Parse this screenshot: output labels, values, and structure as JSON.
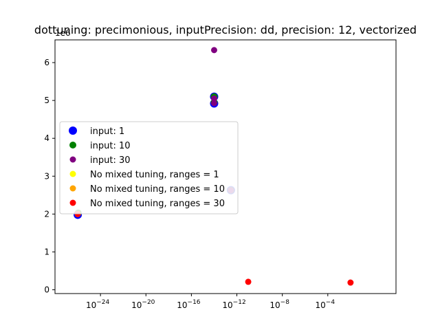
{
  "chart_data": {
    "type": "scatter",
    "title": "dottuning: precimonious, inputPrecision: dd, precision: 12, vectorized",
    "xlabel": "",
    "ylabel": "",
    "xscale": "log",
    "xlim": [
      1e-28,
      100.0
    ],
    "ylim": [
      -100000.0,
      6600000.0
    ],
    "y_offset_label": "1e6",
    "x_ticks": [
      {
        "exp": -24,
        "base": "10",
        "sup": "−24"
      },
      {
        "exp": -20,
        "base": "10",
        "sup": "−20"
      },
      {
        "exp": -16,
        "base": "10",
        "sup": "−16"
      },
      {
        "exp": -12,
        "base": "10",
        "sup": "−12"
      },
      {
        "exp": -8,
        "base": "10",
        "sup": "−8"
      },
      {
        "exp": -4,
        "base": "10",
        "sup": "−4"
      }
    ],
    "y_ticks": [
      {
        "value": 0,
        "label": "0"
      },
      {
        "value": 1000000.0,
        "label": "1"
      },
      {
        "value": 2000000.0,
        "label": "2"
      },
      {
        "value": 3000000.0,
        "label": "3"
      },
      {
        "value": 4000000.0,
        "label": "4"
      },
      {
        "value": 5000000.0,
        "label": "5"
      },
      {
        "value": 6000000.0,
        "label": "6"
      }
    ],
    "grid": false,
    "legend_position": "center-left",
    "series": [
      {
        "name": "input: 1",
        "color": "#0000ff",
        "marker_size": "large",
        "points": [
          [
            1e-26,
            1980000.0
          ],
          [
            1e-14,
            5100000.0
          ],
          [
            1e-14,
            4920000.0
          ],
          [
            3e-13,
            2630000.0
          ]
        ]
      },
      {
        "name": "input: 10",
        "color": "#008000",
        "marker_size": "medium",
        "points": [
          [
            1.1e-26,
            2030000.0
          ],
          [
            1e-14,
            5100000.0
          ],
          [
            1e-14,
            4950000.0
          ],
          [
            3e-13,
            2630000.0
          ]
        ]
      },
      {
        "name": "input: 30",
        "color": "#800080",
        "marker_size": "small",
        "points": [
          [
            1e-14,
            6330000.0
          ],
          [
            1e-14,
            5050000.0
          ],
          [
            1e-14,
            4930000.0
          ],
          [
            3e-13,
            2630000.0
          ]
        ]
      },
      {
        "name": "No mixed tuning, ranges = 1",
        "color": "#ffff00",
        "marker_size": "small",
        "points": [
          [
            1e-26,
            2000000.0
          ]
        ]
      },
      {
        "name": "No mixed tuning, ranges = 10",
        "color": "#ffa500",
        "marker_size": "small",
        "points": [
          [
            1e-26,
            2000000.0
          ]
        ]
      },
      {
        "name": "No mixed tuning, ranges = 30",
        "color": "#ff0000",
        "marker_size": "small",
        "points": [
          [
            1e-26,
            2000000.0
          ],
          [
            1e-11,
            210000.0
          ],
          [
            0.01,
            190000.0
          ]
        ]
      }
    ]
  }
}
